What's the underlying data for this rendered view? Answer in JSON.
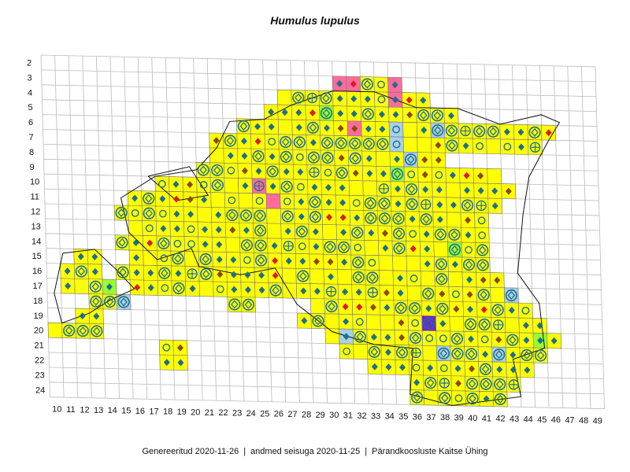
{
  "title": "Humulus lupulus",
  "footer": {
    "generated": "Genereeritud 2020-11-26",
    "data_state": "andmed seisuga 2020-11-25",
    "organization": "Pärandkoosluste Kaitse Ühing",
    "separator": "|"
  },
  "row_labels": [
    "2",
    "3",
    "4",
    "5",
    "6",
    "7",
    "8",
    "9",
    "10",
    "11",
    "12",
    "13",
    "14",
    "15",
    "16",
    "17",
    "18",
    "19",
    "20",
    "21",
    "22",
    "23",
    "24"
  ],
  "col_labels": [
    "10",
    "11",
    "12",
    "13",
    "14",
    "15",
    "16",
    "17",
    "18",
    "19",
    "20",
    "21",
    "22",
    "23",
    "24",
    "25",
    "26",
    "27",
    "28",
    "29",
    "30",
    "31",
    "32",
    "33",
    "34",
    "35",
    "36",
    "37",
    "38",
    "39",
    "40",
    "41",
    "42",
    "43",
    "44",
    "45",
    "46",
    "47",
    "48",
    "49"
  ],
  "colors": {
    "yellow_fill": "#ffff00",
    "pink_fill": "#ff6b9c",
    "light_blue_fill": "#a8d0e6",
    "light_green_fill": "#99ff33",
    "purple_fill": "#7a1fd6",
    "grid_line": "#bbbbbb",
    "marker_blue": "#1f6f8b",
    "marker_brown": "#8a4a12",
    "marker_red": "#e01b24",
    "coastline": "#111111"
  },
  "legend_symbols": [
    "blue-diamond",
    "brown-diamond",
    "red-diamond",
    "ring",
    "diamond-in-ring",
    "plus-in-ring",
    "plus"
  ]
}
